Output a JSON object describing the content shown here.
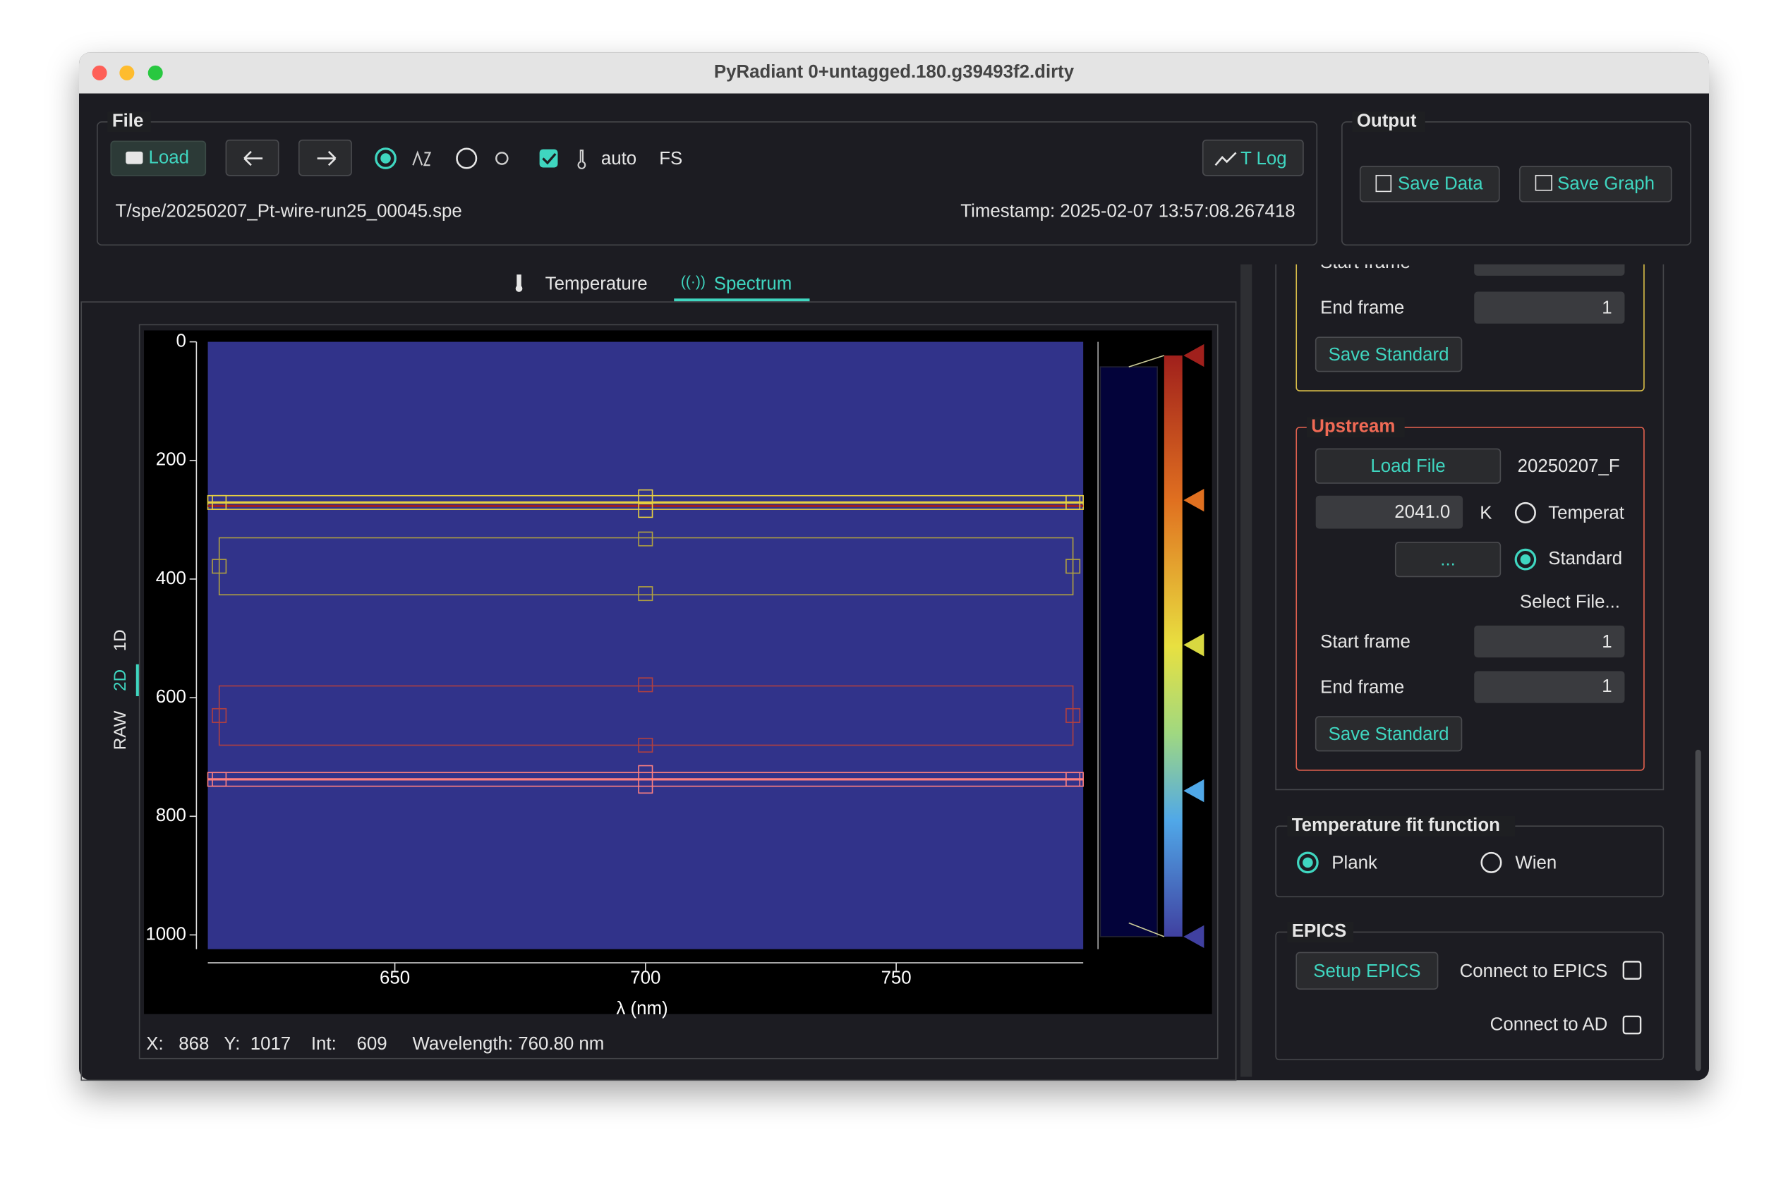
{
  "window": {
    "title": "PyRadiant 0+untagged.180.g39493f2.dirty"
  },
  "file": {
    "label": "File",
    "load": "Load",
    "auto": "auto",
    "fs": "FS",
    "t_log": "T Log",
    "path": "T/spe/20250207_Pt-wire-run25_00045.spe",
    "timestamp": "Timestamp: 2025-02-07 13:57:08.267418"
  },
  "output": {
    "label": "Output",
    "save_data": "Save Data",
    "save_graph": "Save Graph"
  },
  "tabs": [
    "Temperature",
    "Spectrum"
  ],
  "side_tabs": [
    "1D",
    "2D",
    "RAW"
  ],
  "plot": {
    "xlim": [
      612.7,
      787.3
    ],
    "ylim": [
      0,
      1024
    ],
    "xticks": [
      650,
      700,
      750
    ],
    "yticks": [
      0,
      200,
      400,
      600,
      800,
      1000
    ],
    "xlabel": "λ (nm)"
  },
  "status": "X:   868   Y:  1017    Int:    609     Wavelength: 760.80 nm",
  "downstream": {
    "start_frame_label": "Start frame",
    "end_frame_label": "End frame",
    "end_frame": "1",
    "save_standard": "Save Standard"
  },
  "upstream": {
    "label": "Upstream",
    "load_file": "Load File",
    "file": "20250207_F",
    "temperature": "2041.0",
    "unit": "K",
    "temp_option": "Temperat",
    "browse": "...",
    "standard_option": "Standard",
    "select_file": "Select File...",
    "start_frame_label": "Start frame",
    "start_frame": "1",
    "end_frame_label": "End frame",
    "end_frame": "1",
    "save_standard": "Save Standard"
  },
  "fit": {
    "label": "Temperature fit function",
    "options": [
      "Plank",
      "Wien"
    ]
  },
  "epics": {
    "label": "EPICS",
    "setup": "Setup EPICS",
    "connect": "Connect to EPICS",
    "connect_ad": "Connect to AD"
  }
}
